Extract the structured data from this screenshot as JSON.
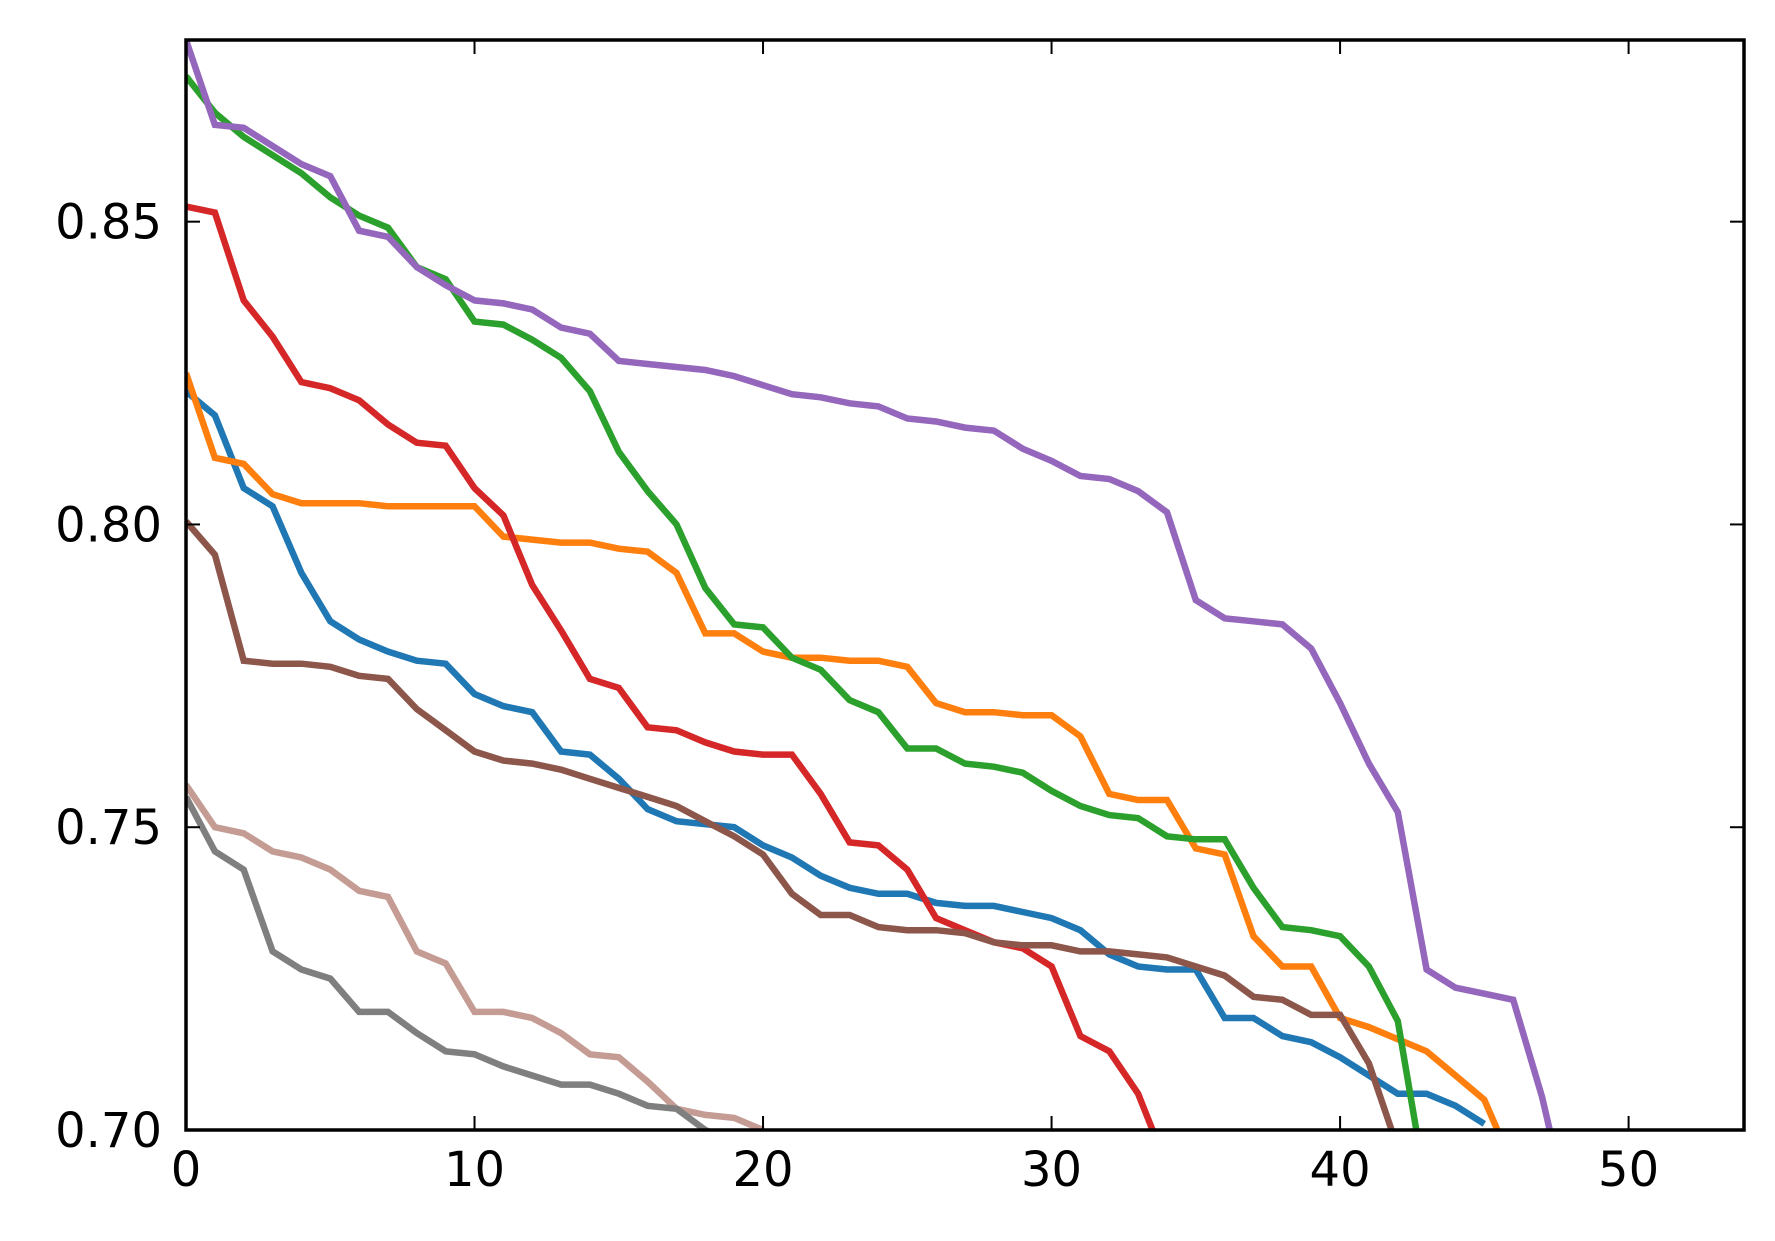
{
  "chart_data": {
    "type": "line",
    "title": "",
    "xlabel": "",
    "ylabel": "",
    "xlim": [
      0,
      54
    ],
    "ylim": [
      0.7,
      0.88
    ],
    "grid": false,
    "x_ticks": [
      0,
      10,
      20,
      30,
      40,
      50
    ],
    "x_tick_labels": [
      "0",
      "10",
      "20",
      "30",
      "40",
      "50"
    ],
    "y_ticks": [
      0.7,
      0.75,
      0.8,
      0.85
    ],
    "y_tick_labels": [
      "0.70",
      "0.75",
      "0.80",
      "0.85"
    ],
    "series": [
      {
        "color": "#1f77b4",
        "values": [
          0.822,
          0.818,
          0.806,
          0.803,
          0.792,
          0.784,
          0.781,
          0.779,
          0.7775,
          0.777,
          0.772,
          0.77,
          0.769,
          0.7625,
          0.762,
          0.758,
          0.753,
          0.751,
          0.7505,
          0.75,
          0.747,
          0.745,
          0.742,
          0.74,
          0.739,
          0.739,
          0.7375,
          0.737,
          0.737,
          0.736,
          0.735,
          0.733,
          0.729,
          0.727,
          0.7265,
          0.7265,
          0.7185,
          0.7185,
          0.7155,
          0.7145,
          0.712,
          0.709,
          0.706,
          0.706,
          0.704,
          0.701
        ]
      },
      {
        "color": "#ff7f0e",
        "values": [
          0.825,
          0.811,
          0.81,
          0.805,
          0.8035,
          0.8035,
          0.8035,
          0.803,
          0.803,
          0.803,
          0.803,
          0.798,
          0.7975,
          0.797,
          0.797,
          0.796,
          0.7955,
          0.792,
          0.782,
          0.782,
          0.779,
          0.778,
          0.778,
          0.7775,
          0.7775,
          0.7765,
          0.7705,
          0.769,
          0.769,
          0.7685,
          0.7685,
          0.765,
          0.7555,
          0.7545,
          0.7545,
          0.7465,
          0.7455,
          0.732,
          0.727,
          0.727,
          0.7185,
          0.717,
          0.715,
          0.713,
          0.709,
          0.705,
          0.694
        ]
      },
      {
        "color": "#2ca02c",
        "values": [
          0.874,
          0.868,
          0.864,
          0.861,
          0.858,
          0.854,
          0.851,
          0.849,
          0.8425,
          0.8405,
          0.8335,
          0.833,
          0.8305,
          0.8275,
          0.822,
          0.812,
          0.8055,
          0.8,
          0.7895,
          0.7835,
          0.783,
          0.778,
          0.776,
          0.771,
          0.769,
          0.763,
          0.763,
          0.7605,
          0.76,
          0.759,
          0.756,
          0.7535,
          0.752,
          0.7515,
          0.7485,
          0.748,
          0.748,
          0.74,
          0.7335,
          0.733,
          0.732,
          0.727,
          0.718,
          0.69
        ]
      },
      {
        "color": "#d62728",
        "values": [
          0.8525,
          0.8515,
          0.837,
          0.831,
          0.8235,
          0.8225,
          0.8205,
          0.8165,
          0.8135,
          0.813,
          0.806,
          0.8015,
          0.79,
          0.7825,
          0.7745,
          0.773,
          0.7665,
          0.766,
          0.764,
          0.7625,
          0.762,
          0.762,
          0.7555,
          0.7475,
          0.747,
          0.743,
          0.735,
          0.733,
          0.731,
          0.73,
          0.727,
          0.7155,
          0.713,
          0.706,
          0.694
        ]
      },
      {
        "color": "#9467bd",
        "values": [
          0.88,
          0.866,
          0.8655,
          0.8625,
          0.8595,
          0.8575,
          0.8485,
          0.8475,
          0.8425,
          0.8395,
          0.837,
          0.8365,
          0.8355,
          0.8325,
          0.8315,
          0.827,
          0.8265,
          0.826,
          0.8255,
          0.8245,
          0.823,
          0.8215,
          0.821,
          0.82,
          0.8195,
          0.8175,
          0.817,
          0.816,
          0.8155,
          0.8125,
          0.8105,
          0.808,
          0.8075,
          0.8055,
          0.802,
          0.7875,
          0.7845,
          0.784,
          0.7835,
          0.7795,
          0.7705,
          0.7605,
          0.7525,
          0.7265,
          0.7235,
          0.7225,
          0.7215,
          0.7055,
          0.685
        ]
      },
      {
        "color": "#8c564b",
        "values": [
          0.8005,
          0.795,
          0.7775,
          0.777,
          0.777,
          0.7765,
          0.775,
          0.7745,
          0.7695,
          0.766,
          0.7625,
          0.761,
          0.7605,
          0.7595,
          0.758,
          0.7565,
          0.755,
          0.7535,
          0.751,
          0.7485,
          0.7455,
          0.739,
          0.7355,
          0.7355,
          0.7335,
          0.733,
          0.733,
          0.7325,
          0.731,
          0.7305,
          0.7305,
          0.7295,
          0.7295,
          0.729,
          0.7285,
          0.727,
          0.7255,
          0.722,
          0.7215,
          0.719,
          0.719,
          0.711,
          0.697
        ]
      },
      {
        "color": "#e377c2",
        "values": [
          0.757,
          0.75,
          0.749,
          0.746,
          0.745,
          0.743,
          0.7395,
          0.7385,
          0.7295,
          0.7275,
          0.7195,
          0.7195,
          0.7185,
          0.716,
          0.7125,
          0.712,
          0.708,
          0.7035,
          0.7025,
          0.702,
          0.7
        ]
      },
      {
        "color": "#7f7f7f",
        "values": [
          0.755,
          0.746,
          0.743,
          0.7295,
          0.7265,
          0.725,
          0.7195,
          0.7195,
          0.716,
          0.713,
          0.7125,
          0.7105,
          0.709,
          0.7075,
          0.7075,
          0.706,
          0.704,
          0.7035,
          0.7,
          0.698
        ]
      }
    ]
  },
  "style": {
    "pink_series_display_color": "#c49c94"
  }
}
